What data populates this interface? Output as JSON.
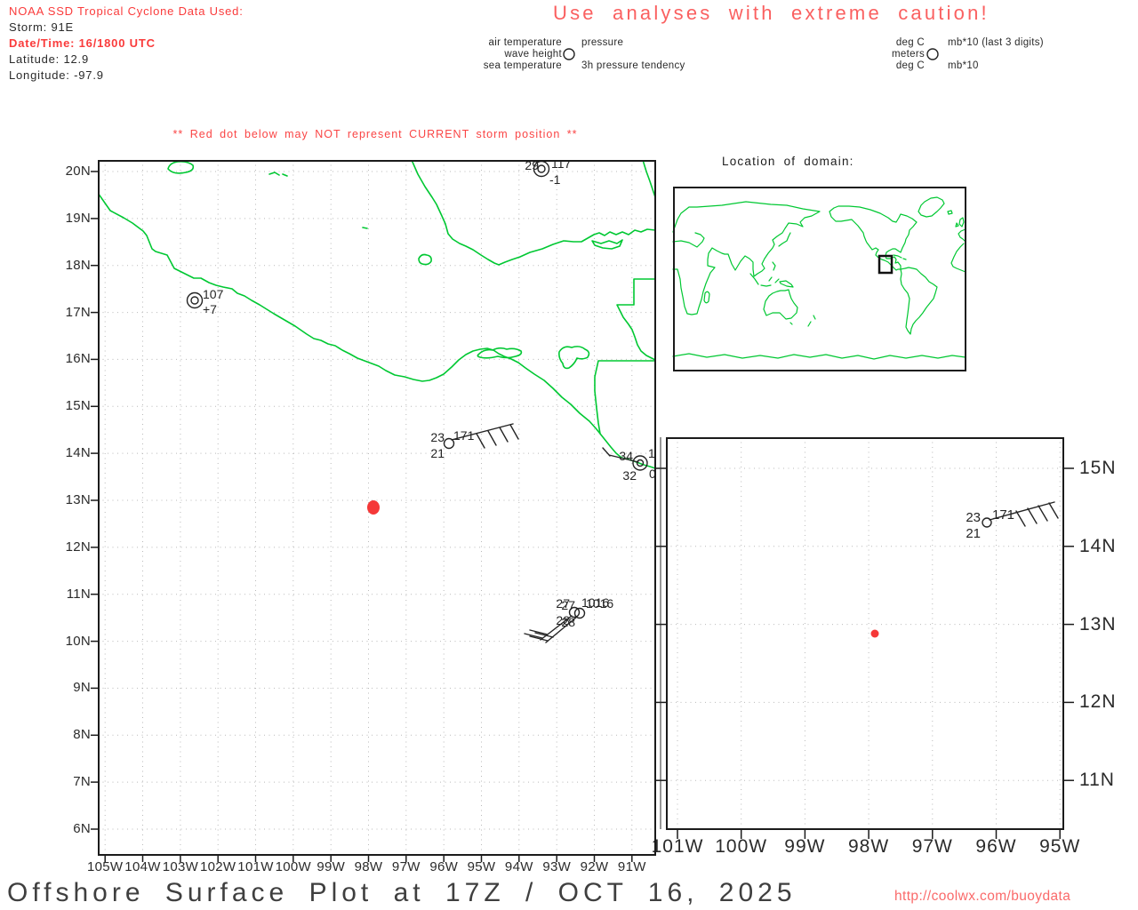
{
  "colors": {
    "red_text": "#fa3b3b",
    "salmon_title": "#fa6060",
    "warning_red": "#fa4545",
    "url_red": "#fa6a6a",
    "map_green": "#00c832",
    "red_dot": "#f53838",
    "ink": "#242424",
    "grid_gray": "#b9b9b9",
    "title_gray": "#3f3f3f"
  },
  "header": {
    "line1": "NOAA SSD Tropical Cyclone Data Used:",
    "storm": "Storm: 91E",
    "datetime": "Date/Time: 16/1800 UTC",
    "latitude": "Latitude: 12.9",
    "longitude": "Longitude: -97.9"
  },
  "caution": "Use analyses with extreme caution!",
  "legend": {
    "air": "air temperature",
    "pressure": "pressure",
    "wave": "wave height",
    "sea": "sea temperature",
    "tendency": "3h pressure tendency",
    "units_air": "deg C",
    "units_pressure": "mb*10 (last 3 digits)",
    "units_wave": "meters",
    "units_sea": "deg C",
    "units_tendency": "mb*10"
  },
  "warning": "** Red dot below may NOT represent CURRENT storm position **",
  "main_map": {
    "x_labels": [
      "105W",
      "104W",
      "103W",
      "102W",
      "101W",
      "100W",
      "99W",
      "98W",
      "97W",
      "96W",
      "95W",
      "94W",
      "93W",
      "92W",
      "91W"
    ],
    "y_labels": [
      "20N",
      "19N",
      "18N",
      "17N",
      "16N",
      "15N",
      "14N",
      "13N",
      "12N",
      "11N",
      "10N",
      "9N",
      "8N",
      "7N",
      "6N"
    ],
    "stations": {
      "top": {
        "air": "29",
        "pressure": "117",
        "tendency": "-1"
      },
      "west": {
        "pressure": "107",
        "tendency": "+7"
      },
      "buoy": {
        "air": "23",
        "sea": "21",
        "pressure": "171"
      },
      "coast": {
        "air": "34",
        "sea": "32",
        "pressure": "1",
        "tendency": "0"
      },
      "cluster_a": {
        "air": "27",
        "sea": "28",
        "pressure": "1016"
      },
      "cluster_b": {
        "air": "27",
        "sea": "28",
        "pressure": "1016"
      }
    }
  },
  "inset": {
    "title": "Location of domain:"
  },
  "domain_panel": {
    "x_labels": [
      "101W",
      "100W",
      "99W",
      "98W",
      "97W",
      "96W",
      "95W"
    ],
    "y_labels": [
      "15N",
      "14N",
      "13N",
      "12N",
      "11N"
    ],
    "station": {
      "air": "23",
      "sea": "21",
      "pressure": "171"
    }
  },
  "footer": {
    "title": "Offshore Surface Plot at 17Z / OCT 16, 2025",
    "url": "http://coolwx.com/buoydata"
  },
  "chart_data": {
    "type": "scatter",
    "title": "Offshore Surface Plot at 17Z / OCT 16, 2025",
    "projection": "lat-lon surface station plot, Eastern Pacific off Mexico",
    "main_axes": {
      "lon_ticks_W": [
        105,
        104,
        103,
        102,
        101,
        100,
        99,
        98,
        97,
        96,
        95,
        94,
        93,
        92,
        91
      ],
      "lat_ticks_N": [
        20,
        19,
        18,
        17,
        16,
        15,
        14,
        13,
        12,
        11,
        10,
        9,
        8,
        7,
        6
      ],
      "grid": "1-degree dotted"
    },
    "zoom_axes": {
      "lon_ticks_W": [
        101,
        100,
        99,
        98,
        97,
        96,
        95
      ],
      "lat_ticks_N": [
        15,
        14,
        13,
        12,
        11
      ]
    },
    "storm_position": {
      "storm": "91E",
      "lat": 12.9,
      "lon": -97.9,
      "marker": "red dot",
      "valid": "16/1800 UTC"
    },
    "station_observations": [
      {
        "lat": 19.9,
        "lon": -93.4,
        "air_temp_c": 29,
        "pressure_last3": "117",
        "tendency_3h": "-1",
        "wind": "calm"
      },
      {
        "lat": 17.3,
        "lon": -102.6,
        "pressure_last3": "107",
        "tendency_3h": "+7",
        "wind": "calm"
      },
      {
        "lat": 14.2,
        "lon": -96.0,
        "air_temp_c": 23,
        "sea_temp_c": 21,
        "pressure_last3": "171",
        "wind": "barb from NE"
      },
      {
        "lat": 13.6,
        "lon": -91.1,
        "air_temp_c": 34,
        "sea_temp_c": 32,
        "pressure_last3": "1",
        "wind": "barb from E"
      },
      {
        "lat": 10.6,
        "lon": -92.6,
        "air_temp_c": 27,
        "sea_temp_c": 28,
        "pressure_last3": "016",
        "wind": "barb from SW"
      },
      {
        "lat": 10.6,
        "lon": -92.5,
        "air_temp_c": 27,
        "sea_temp_c": 28,
        "pressure_last3": "016",
        "wind": "barb from SW"
      }
    ]
  }
}
